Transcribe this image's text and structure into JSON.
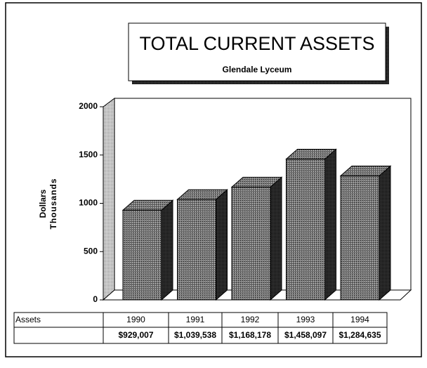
{
  "chart_data": {
    "type": "bar3d",
    "title": "TOTAL CURRENT ASSETS",
    "subtitle": "Glendale Lyceum",
    "y_label": [
      "Dollars",
      "Thousands"
    ],
    "categories": [
      "1990",
      "1991",
      "1992",
      "1993",
      "1994"
    ],
    "series": [
      {
        "name": "Assets",
        "color": "#555555",
        "values": [
          929.007,
          1039.538,
          1168.178,
          1458.097,
          1284.635
        ],
        "value_labels": [
          "$929,007",
          "$1,039,538",
          "$1,168,178",
          "$1,458,097",
          "$1,284,635"
        ]
      }
    ],
    "ylim": [
      0,
      2000
    ],
    "yticks": [
      0,
      500,
      1000,
      1500,
      2000
    ]
  }
}
